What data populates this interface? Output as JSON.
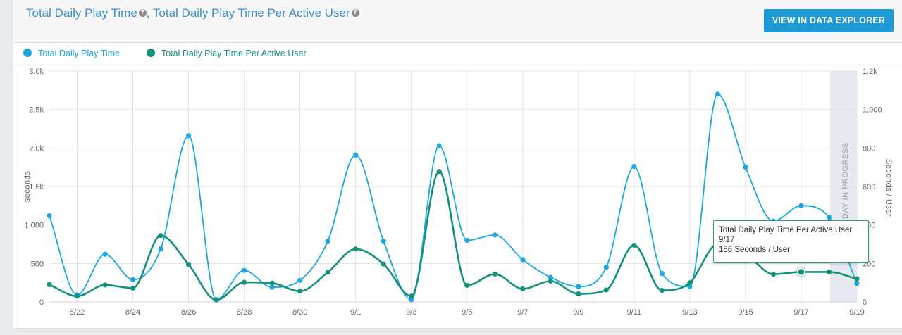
{
  "header": {
    "title_1": "Total Daily Play Time",
    "title_2": ", Total Daily Play Time Per Active User",
    "button_label": "VIEW IN DATA EXPLORER"
  },
  "colors": {
    "series1": "#1ba7e0",
    "series2": "#13917a",
    "accent": "#1e9ad6"
  },
  "icons": {
    "help": "question-circle-icon"
  },
  "tooltip": {
    "series": "Total Daily Play Time Per Active User",
    "date": "9/17",
    "value": "156 Seconds / User"
  },
  "chart_data": {
    "type": "line",
    "x": [
      "8/21",
      "8/22",
      "8/23",
      "8/24",
      "8/25",
      "8/26",
      "8/27",
      "8/28",
      "8/29",
      "8/30",
      "8/31",
      "9/1",
      "9/2",
      "9/3",
      "9/4",
      "9/5",
      "9/6",
      "9/7",
      "9/8",
      "9/9",
      "9/10",
      "9/11",
      "9/12",
      "9/13",
      "9/14",
      "9/15",
      "9/16",
      "9/17",
      "9/18",
      "9/19"
    ],
    "xticks": [
      "8/22",
      "8/24",
      "8/26",
      "8/28",
      "8/30",
      "9/1",
      "9/3",
      "9/5",
      "9/7",
      "9/9",
      "9/11",
      "9/13",
      "9/15",
      "9/17",
      "9/19"
    ],
    "series": [
      {
        "name": "Total Daily Play Time",
        "axis": "left",
        "values": [
          1120,
          90,
          620,
          290,
          690,
          2160,
          30,
          410,
          190,
          280,
          790,
          1910,
          790,
          30,
          2030,
          800,
          870,
          550,
          320,
          200,
          450,
          1760,
          370,
          200,
          2700,
          1750,
          1050,
          1250,
          1100,
          240
        ]
      },
      {
        "name": "Total Daily Play Time Per Active User",
        "axis": "right",
        "values": [
          90,
          30,
          88,
          72,
          345,
          195,
          10,
          102,
          98,
          56,
          154,
          275,
          197,
          30,
          678,
          86,
          145,
          68,
          108,
          42,
          62,
          294,
          60,
          100,
          300,
          250,
          144,
          156,
          156,
          120
        ]
      }
    ],
    "y_left": {
      "label": "seconds",
      "ylim": [
        0,
        3000
      ],
      "ticks": [
        "0",
        "500",
        "1,000",
        "1.5k",
        "2.0k",
        "2.5k",
        "3.0k"
      ]
    },
    "y_right": {
      "label": "Seconds / User",
      "ylim": [
        0,
        1200
      ],
      "ticks": [
        "0",
        "200",
        "400",
        "600",
        "800",
        "1,000",
        "1.2k"
      ]
    },
    "in_progress_label": "DAY IN PROGRESS",
    "grid": true,
    "legend": "top-left"
  }
}
